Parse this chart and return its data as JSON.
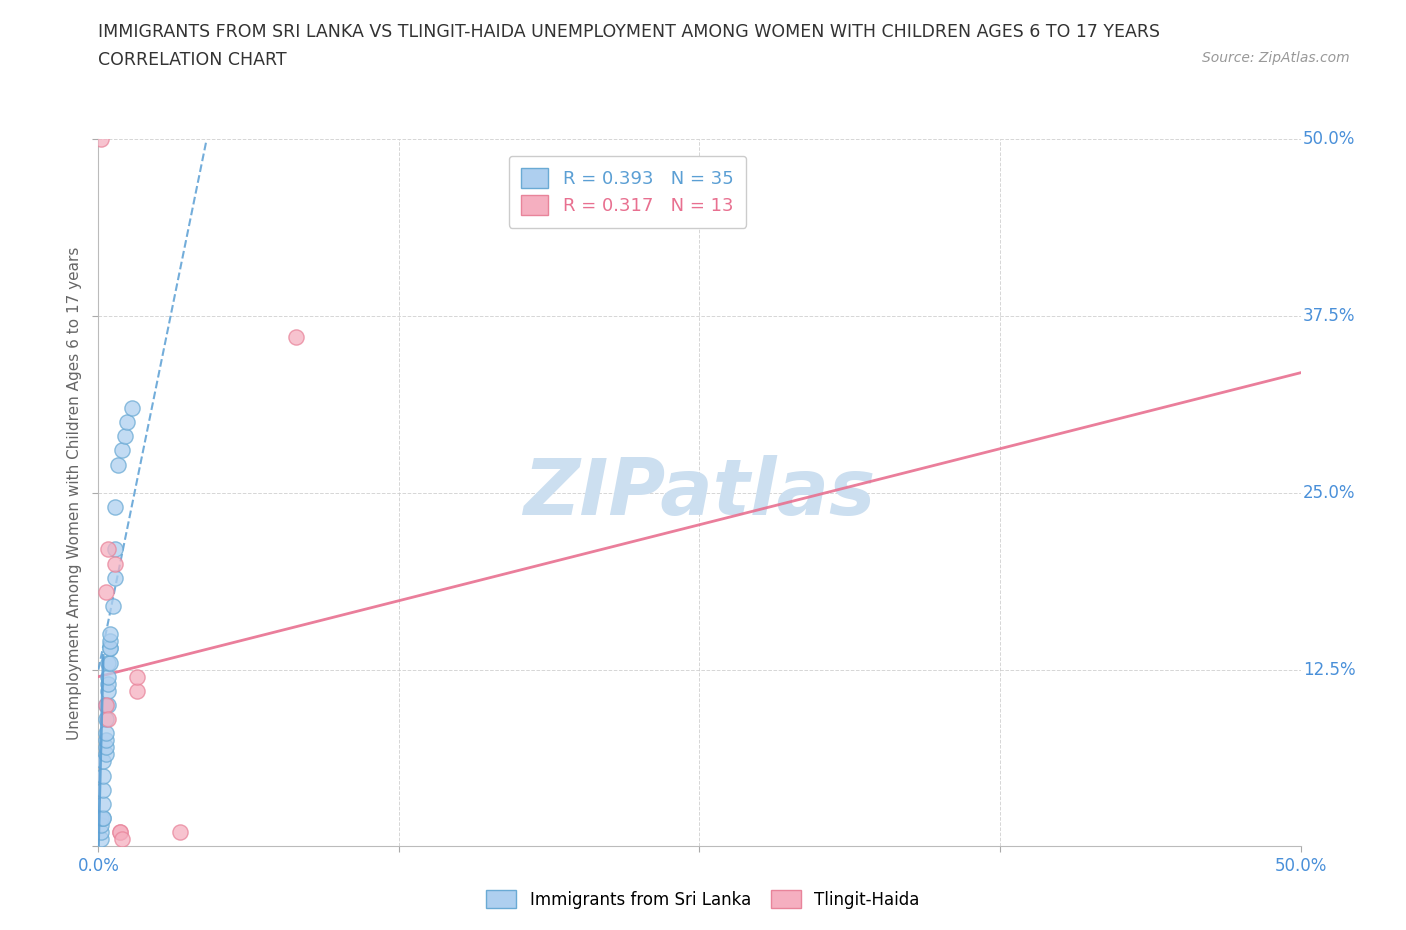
{
  "title_line1": "IMMIGRANTS FROM SRI LANKA VS TLINGIT-HAIDA UNEMPLOYMENT AMONG WOMEN WITH CHILDREN AGES 6 TO 17 YEARS",
  "title_line2": "CORRELATION CHART",
  "source_text": "Source: ZipAtlas.com",
  "ylabel": "Unemployment Among Women with Children Ages 6 to 17 years",
  "xmin": 0.0,
  "xmax": 0.5,
  "ymin": 0.0,
  "ymax": 0.5,
  "grid_ticks": [
    0.0,
    0.125,
    0.25,
    0.375,
    0.5
  ],
  "blue_R": 0.393,
  "blue_N": 35,
  "pink_R": 0.317,
  "pink_N": 13,
  "blue_color": "#aecfef",
  "pink_color": "#f5afc0",
  "blue_edge_color": "#6aaad4",
  "pink_edge_color": "#e8849a",
  "blue_line_color": "#5b9fd4",
  "pink_line_color": "#e87090",
  "watermark_color": "#ccdff0",
  "blue_scatter_x": [
    0.001,
    0.001,
    0.001,
    0.001,
    0.002,
    0.002,
    0.002,
    0.002,
    0.002,
    0.002,
    0.003,
    0.003,
    0.003,
    0.003,
    0.003,
    0.003,
    0.004,
    0.004,
    0.004,
    0.004,
    0.004,
    0.005,
    0.005,
    0.005,
    0.005,
    0.005,
    0.006,
    0.007,
    0.007,
    0.007,
    0.008,
    0.01,
    0.011,
    0.012,
    0.014
  ],
  "blue_scatter_y": [
    0.005,
    0.01,
    0.015,
    0.02,
    0.02,
    0.02,
    0.03,
    0.04,
    0.05,
    0.06,
    0.065,
    0.07,
    0.075,
    0.08,
    0.09,
    0.1,
    0.1,
    0.11,
    0.115,
    0.12,
    0.13,
    0.13,
    0.14,
    0.14,
    0.145,
    0.15,
    0.17,
    0.19,
    0.21,
    0.24,
    0.27,
    0.28,
    0.29,
    0.3,
    0.31
  ],
  "pink_scatter_x": [
    0.001,
    0.003,
    0.003,
    0.004,
    0.004,
    0.007,
    0.009,
    0.009,
    0.01,
    0.016,
    0.016,
    0.034,
    0.082
  ],
  "pink_scatter_y": [
    0.5,
    0.1,
    0.18,
    0.21,
    0.09,
    0.2,
    0.01,
    0.01,
    0.005,
    0.11,
    0.12,
    0.01,
    0.36
  ],
  "blue_trend_x0": 0.0,
  "blue_trend_y0": 0.125,
  "blue_trend_x1": 0.045,
  "blue_trend_y1": 0.5,
  "pink_trend_x0": 0.0,
  "pink_trend_y0": 0.12,
  "pink_trend_x1": 0.5,
  "pink_trend_y1": 0.335
}
